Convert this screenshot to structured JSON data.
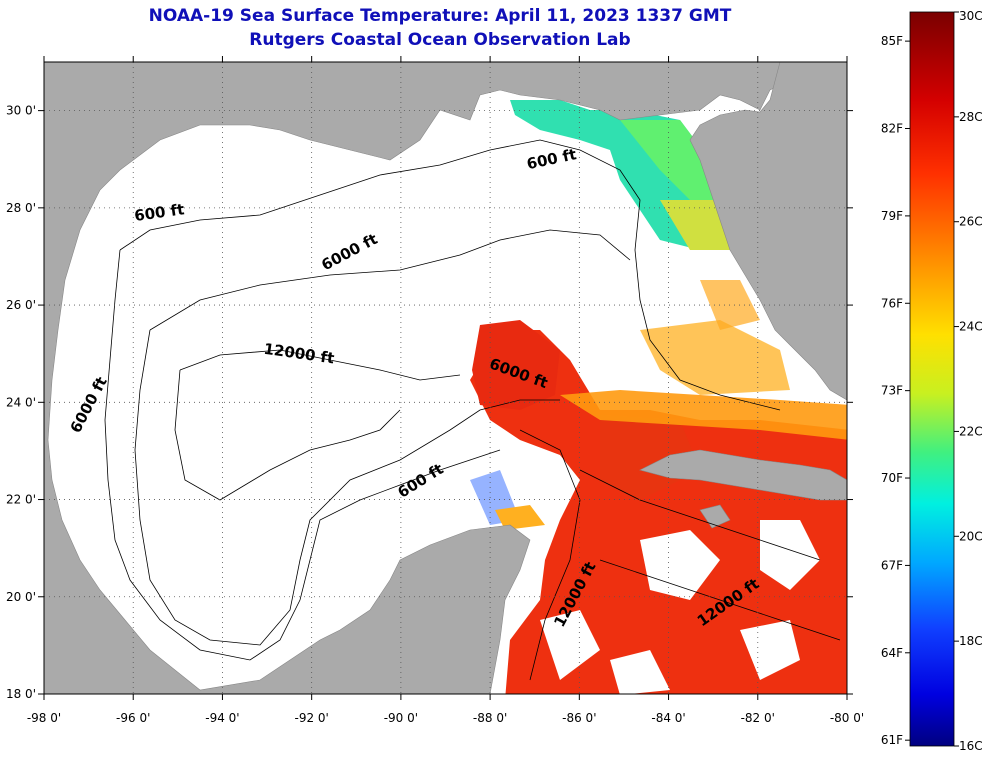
{
  "title": "NOAA-19 Sea Surface Temperature:  April 11, 2023 1337 GMT",
  "subtitle": "Rutgers Coastal Ocean Observation Lab",
  "map": {
    "lat_ticks": [
      "30 0'",
      "28 0'",
      "26 0'",
      "24 0'",
      "22 0'",
      "20 0'",
      "18 0'"
    ],
    "lat_values": [
      30,
      28,
      26,
      24,
      22,
      20,
      18
    ],
    "lon_ticks": [
      "-98 0'",
      "-96 0'",
      "-94 0'",
      "-92 0'",
      "-90 0'",
      "-88 0'",
      "-86 0'",
      "-84 0'",
      "-82 0'",
      "-80 0'"
    ],
    "lon_values": [
      -98,
      -96,
      -94,
      -92,
      -90,
      -88,
      -86,
      -84,
      -82,
      -80
    ],
    "lat_range": [
      18,
      31
    ],
    "lon_range": [
      -98,
      -80
    ],
    "land_color": "#aaaaaa",
    "no_data_color": "#ffffff",
    "contour_labels": [
      {
        "text": "600 ft",
        "lon": -86.6,
        "lat": 28.9,
        "angle": -12
      },
      {
        "text": "600 ft",
        "lon": -95.4,
        "lat": 27.8,
        "angle": -8
      },
      {
        "text": "6000 ft",
        "lon": -91.1,
        "lat": 27.0,
        "angle": -28
      },
      {
        "text": "12000 ft",
        "lon": -92.3,
        "lat": 24.9,
        "angle": 8
      },
      {
        "text": "6000 ft",
        "lon": -96.9,
        "lat": 23.9,
        "angle": -62
      },
      {
        "text": "6000 ft",
        "lon": -87.4,
        "lat": 24.5,
        "angle": 20
      },
      {
        "text": "600 ft",
        "lon": -89.5,
        "lat": 22.3,
        "angle": -32
      },
      {
        "text": "12000 ft",
        "lon": -86.0,
        "lat": 20.0,
        "angle": -62
      },
      {
        "text": "12000 ft",
        "lon": -82.6,
        "lat": 19.8,
        "angle": -35
      }
    ]
  },
  "colorbar": {
    "min_c": 16,
    "max_c": 30,
    "celsius_labels": [
      "30C",
      "28C",
      "26C",
      "24C",
      "22C",
      "20C",
      "18C",
      "16C"
    ],
    "fahrenheit_labels": [
      "85F",
      "82F",
      "79F",
      "76F",
      "73F",
      "70F",
      "67F",
      "64F",
      "61F"
    ],
    "fahrenheit_values": [
      85,
      82,
      79,
      76,
      73,
      70,
      67,
      64,
      61
    ]
  }
}
